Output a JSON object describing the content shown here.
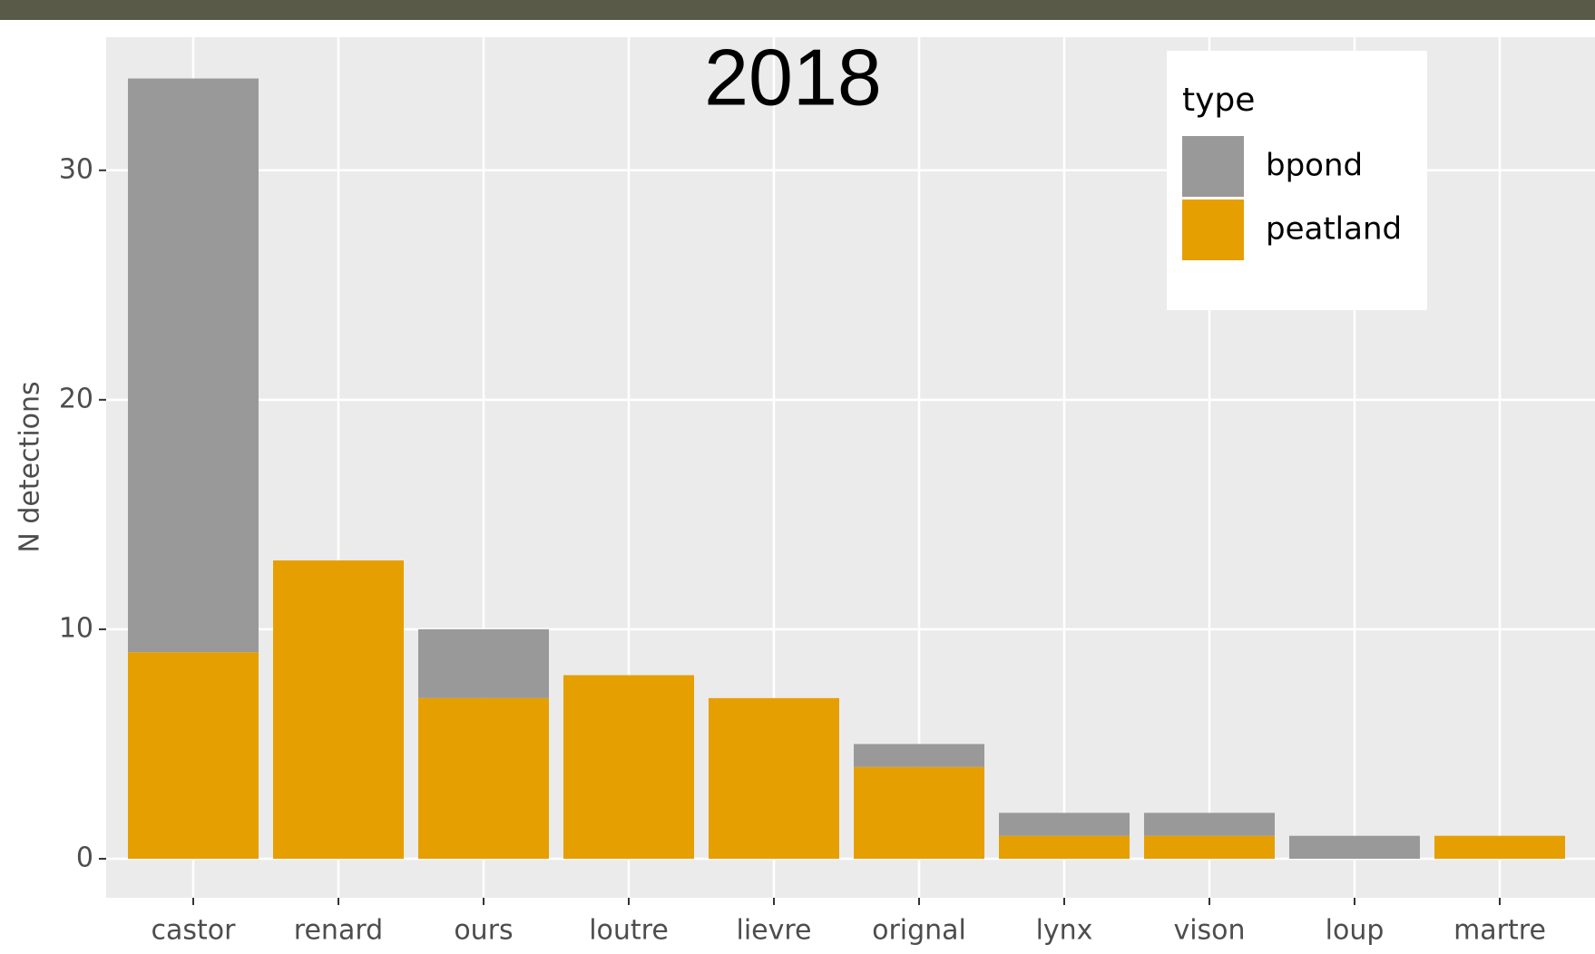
{
  "chart_data": {
    "type": "bar",
    "stacked": true,
    "title": "2018",
    "y_label": "N detections",
    "categories": [
      "castor",
      "renard",
      "ours",
      "loutre",
      "lievre",
      "orignal",
      "lynx",
      "vison",
      "loup",
      "martre"
    ],
    "series": [
      {
        "name": "bpond",
        "color": "#999999",
        "values": [
          25,
          0,
          3,
          0,
          0,
          1,
          1,
          1,
          1,
          0
        ]
      },
      {
        "name": "peatland",
        "color": "#E69F00",
        "values": [
          9,
          13,
          7,
          8,
          7,
          4,
          1,
          1,
          0,
          1
        ]
      }
    ],
    "legend_title": "type",
    "legend_position": "top-right",
    "ylim": [
      -1.7,
      35.8
    ],
    "yticks": [
      0,
      10,
      20,
      30
    ],
    "grid": true
  }
}
